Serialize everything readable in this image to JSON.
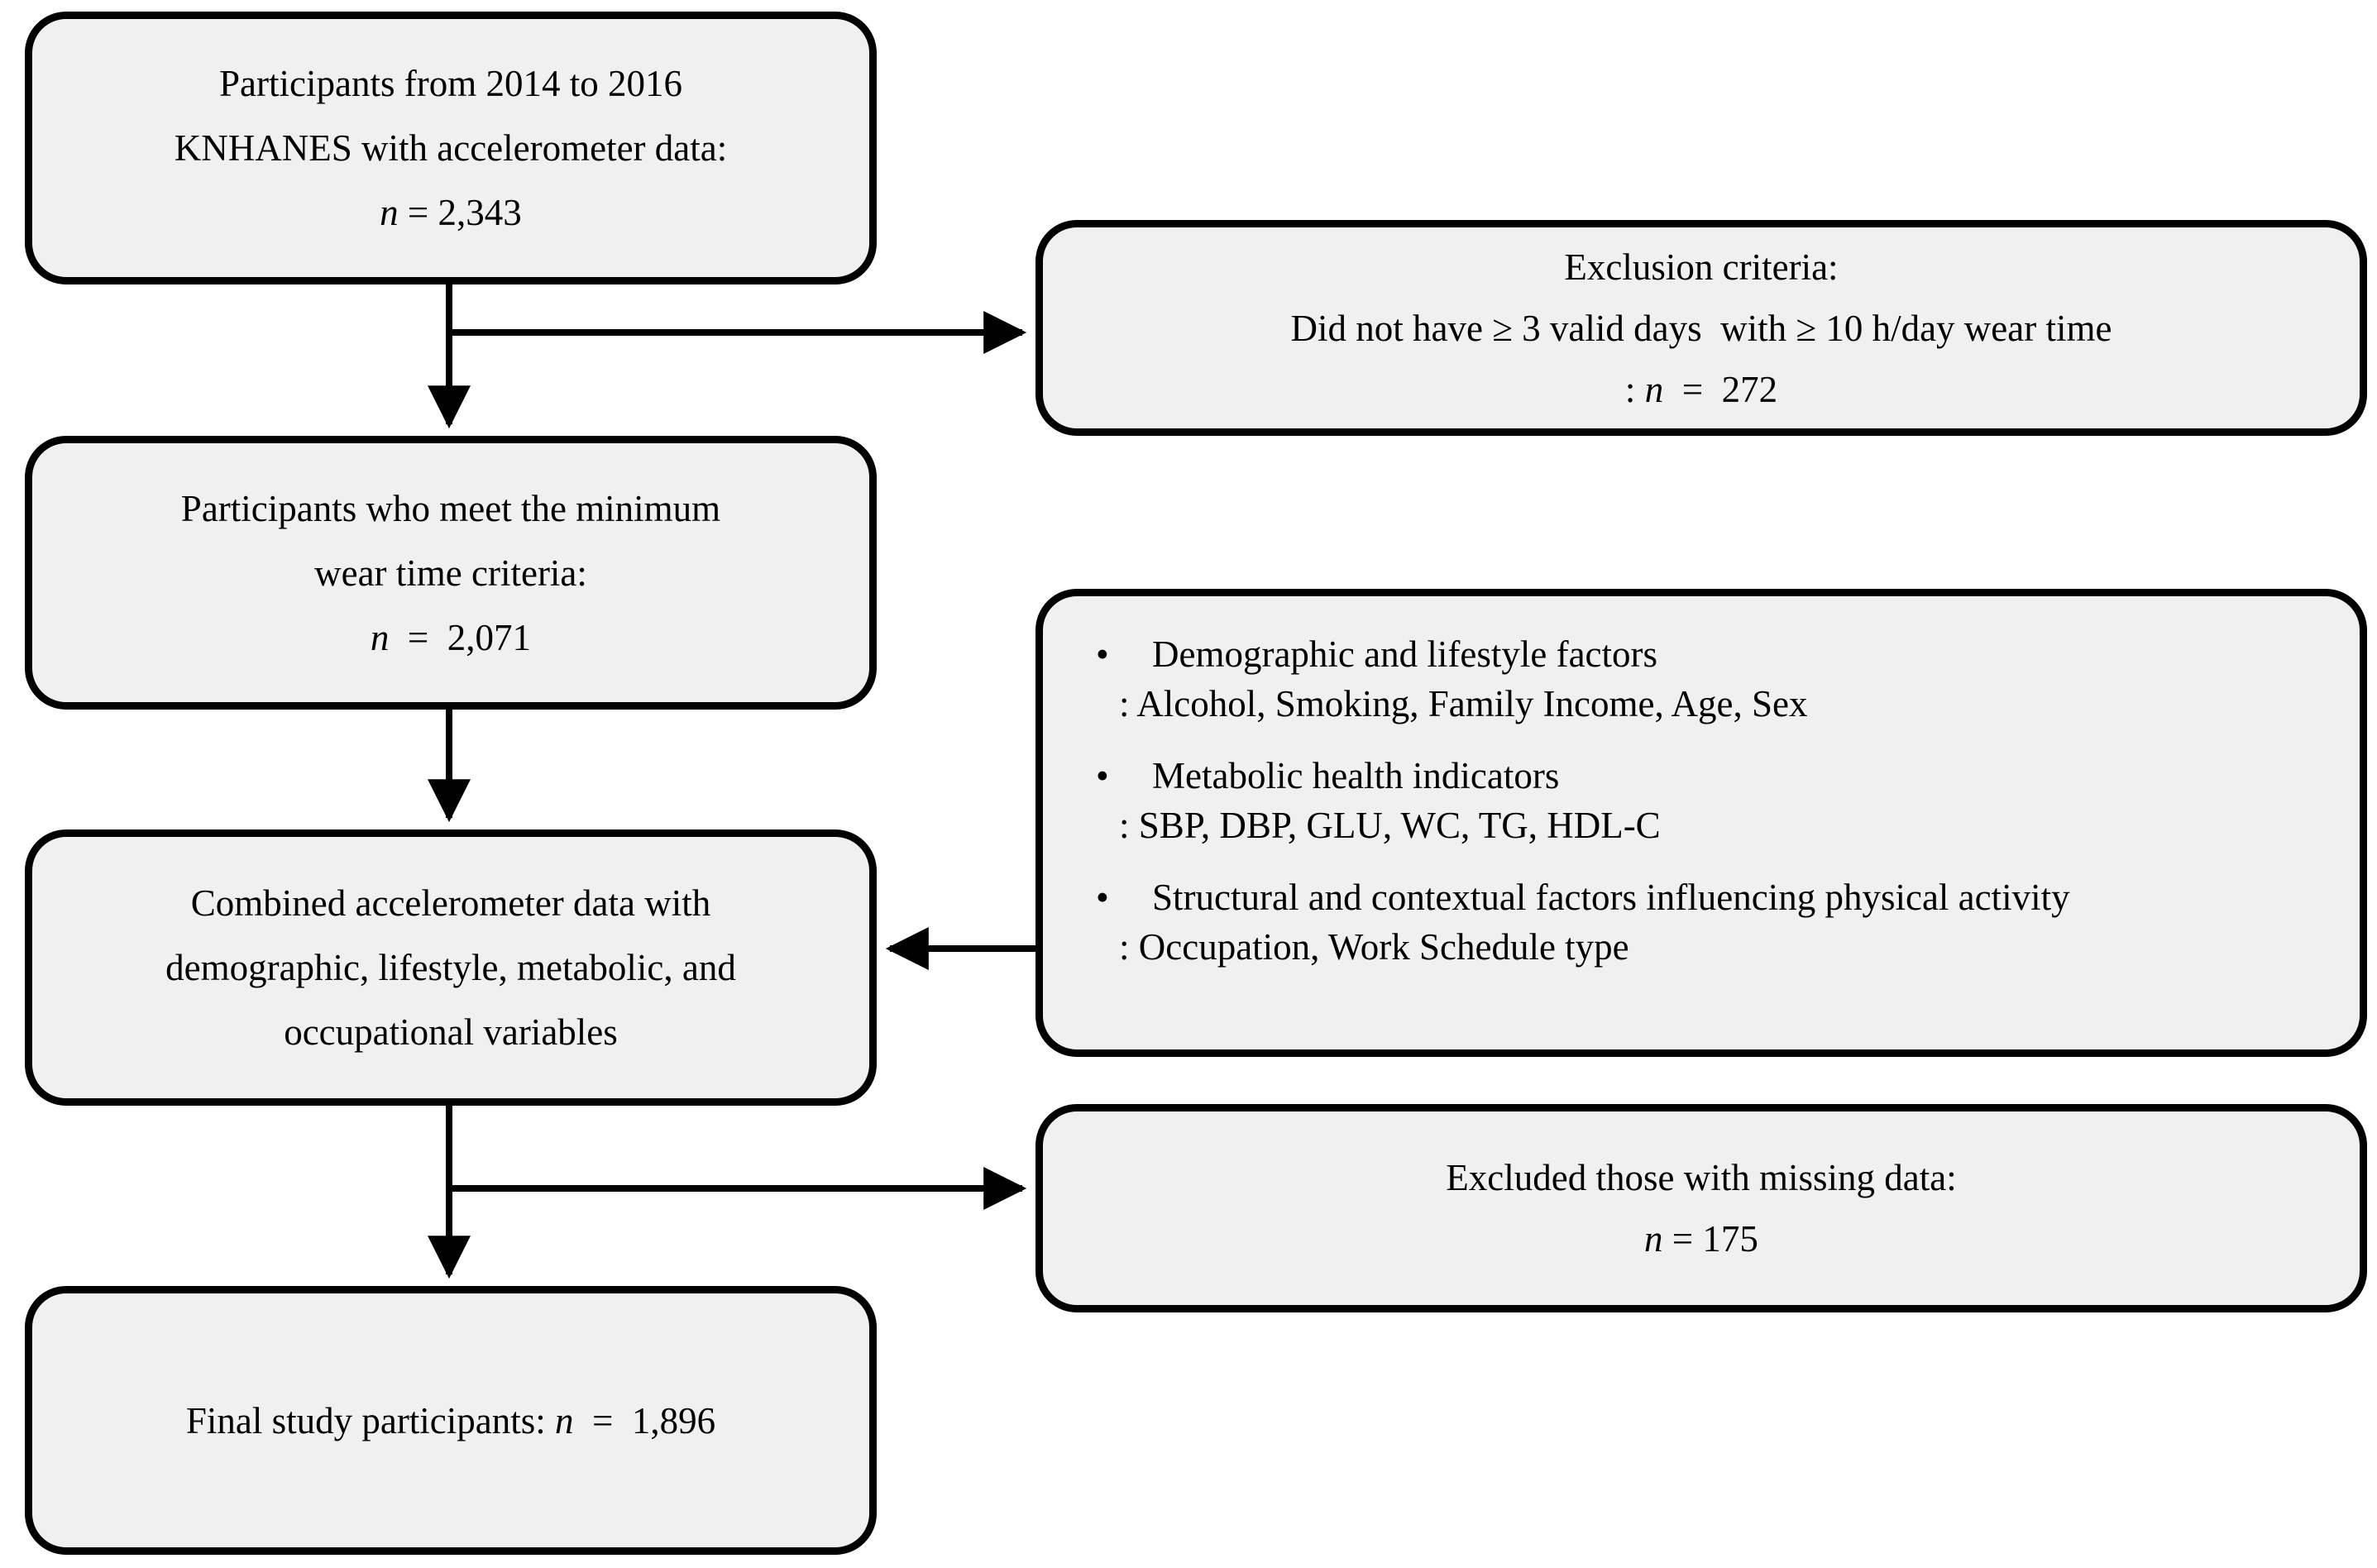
{
  "diagram": {
    "background": "#ffffff",
    "box_fill": "#f0f0f0",
    "box_border": "#000000",
    "arrow_color": "#000000",
    "bullet_glyph": "•",
    "boxes": {
      "participants_source": {
        "lines": [
          [
            {
              "t": "Participants from 2014 to 2016"
            }
          ],
          [
            {
              "t": "KNHANES with accelerometer data:"
            }
          ],
          [
            {
              "t": "n",
              "i": true
            },
            {
              "t": " = 2,343"
            }
          ]
        ]
      },
      "exclusion_criteria": {
        "lines": [
          [
            {
              "t": "Exclusion criteria:"
            }
          ],
          [
            {
              "t": "Did not have ≥ 3 valid days  with ≥ 10 h/day wear time"
            }
          ],
          [
            {
              "t": ": "
            },
            {
              "t": "n",
              "i": true
            },
            {
              "t": "  =  272"
            }
          ]
        ]
      },
      "wear_time_met": {
        "lines": [
          [
            {
              "t": "Participants who meet the minimum"
            }
          ],
          [
            {
              "t": "wear time criteria:"
            }
          ],
          [
            {
              "t": "n",
              "i": true
            },
            {
              "t": "  =  2,071"
            }
          ]
        ]
      },
      "covariates": {
        "items": [
          {
            "bullet": [
              {
                "t": "Demographic and lifestyle factors"
              }
            ],
            "detail": [
              {
                "t": ": Alcohol, Smoking, Family Income, Age, Sex"
              }
            ]
          },
          {
            "bullet": [
              {
                "t": "Metabolic health indicators"
              }
            ],
            "detail": [
              {
                "t": ": SBP, DBP, GLU, WC, TG, HDL-C"
              }
            ]
          },
          {
            "bullet": [
              {
                "t": "Structural and contextual factors influencing physical activity"
              }
            ],
            "detail": [
              {
                "t": ": Occupation, Work Schedule type"
              }
            ]
          }
        ]
      },
      "combined_data": {
        "lines": [
          [
            {
              "t": "Combined accelerometer data with"
            }
          ],
          [
            {
              "t": "demographic, lifestyle, metabolic, and"
            }
          ],
          [
            {
              "t": "occupational variables"
            }
          ]
        ]
      },
      "excluded_missing": {
        "lines": [
          [
            {
              "t": "Excluded those with missing data:"
            }
          ],
          [
            {
              "t": "n",
              "i": true
            },
            {
              "t": " = 175"
            }
          ]
        ]
      },
      "final_participants": {
        "lines": [
          [
            {
              "t": "Final study participants: "
            },
            {
              "t": "n",
              "i": true
            },
            {
              "t": "  =  1,896"
            }
          ]
        ]
      }
    }
  }
}
